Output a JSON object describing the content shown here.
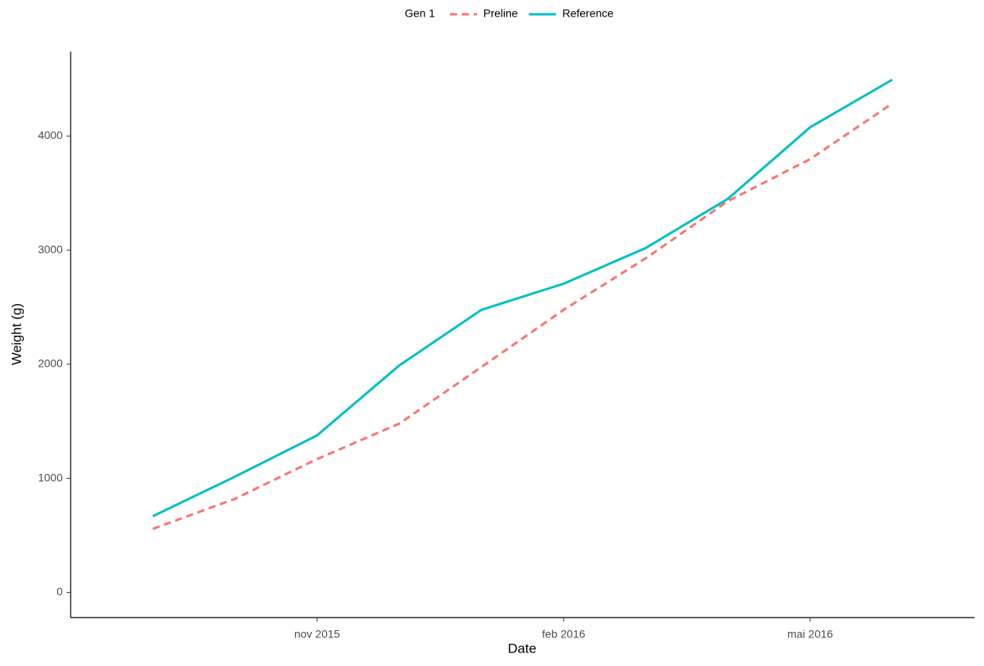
{
  "chart_data": {
    "type": "line",
    "legend_title": "Gen 1",
    "xlabel": "Date",
    "ylabel": "Weight (g)",
    "x": [
      "2015-09",
      "2015-10",
      "2015-11",
      "2015-12",
      "2016-01",
      "2016-02",
      "2016-03",
      "2016-04",
      "2016-05",
      "2016-06"
    ],
    "series": [
      {
        "name": "Preline",
        "color": "#f8766d",
        "dash": "dashed",
        "values": [
          557,
          821,
          1169,
          1480,
          1976,
          2477,
          2929,
          3430,
          3798,
          4285
        ]
      },
      {
        "name": "Reference",
        "color": "#00bfc4",
        "dash": "solid",
        "values": [
          668,
          1015,
          1377,
          1990,
          2477,
          2706,
          3019,
          3450,
          4077,
          4494
        ]
      }
    ],
    "xlim": [
      "2015-08",
      "2016-07"
    ],
    "xticks": [
      {
        "value": "2015-11",
        "label": "nov 2015"
      },
      {
        "value": "2016-02",
        "label": "feb 2016"
      },
      {
        "value": "2016-05",
        "label": "mai 2016"
      }
    ],
    "ylim": [
      -220,
      4740
    ],
    "yticks": [
      0,
      1000,
      2000,
      3000,
      4000
    ],
    "grid": false,
    "legend": "top"
  }
}
